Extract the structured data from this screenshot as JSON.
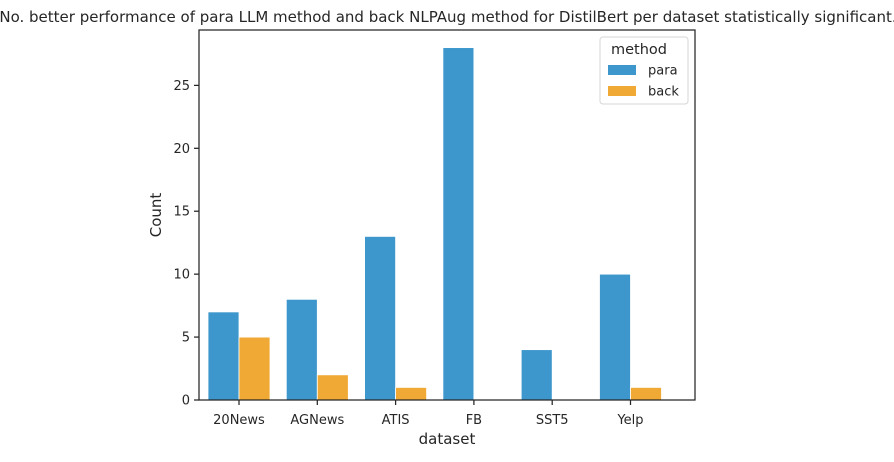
{
  "chart_data": {
    "type": "bar",
    "title": "No. better performance of para LLM method and back NLPAug method for DistilBert per dataset statistically significant.",
    "xlabel": "dataset",
    "ylabel": "Count",
    "categories": [
      "20News",
      "AGNews",
      "ATIS",
      "FB",
      "SST5",
      "Yelp"
    ],
    "series": [
      {
        "name": "para",
        "values": [
          7,
          8,
          13,
          28,
          4,
          10
        ],
        "color": "#3d97cc"
      },
      {
        "name": "back",
        "values": [
          5,
          2,
          1,
          0,
          0,
          1
        ],
        "color": "#f0a934"
      }
    ],
    "ylim": [
      0,
      29.4
    ],
    "yticks": [
      0,
      5,
      10,
      15,
      20,
      25
    ],
    "grid": false,
    "legend": {
      "title": "method",
      "placement": "top-right"
    }
  }
}
